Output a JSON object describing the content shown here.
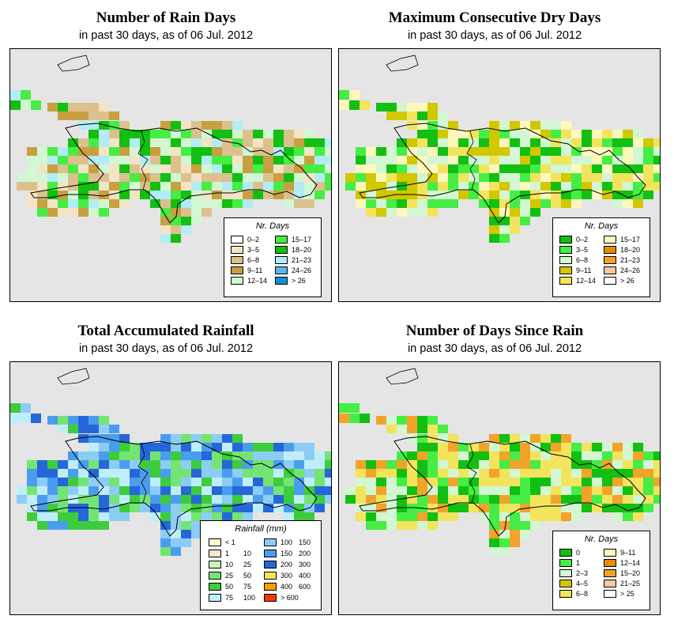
{
  "panels": [
    {
      "id": "rain_days",
      "title": "Number of Rain Days",
      "subtitle": "in past 30 days, as of  06 Jul. 2012",
      "legend": {
        "title": "Nr. Days",
        "items": [
          {
            "label": "0–2",
            "color": "#ffffff"
          },
          {
            "label": "3–5",
            "color": "#f3e4c6"
          },
          {
            "label": "6–8",
            "color": "#dcc18e"
          },
          {
            "label": "9–11",
            "color": "#c8a041"
          },
          {
            "label": "12–14",
            "color": "#d2f7d2"
          },
          {
            "label": "15–17",
            "color": "#45ed45"
          },
          {
            "label": "18–20",
            "color": "#12bf12"
          },
          {
            "label": "21–23",
            "color": "#b3ecf4"
          },
          {
            "label": "24–26",
            "color": "#59b7ec"
          },
          {
            "label": "> 26",
            "color": "#138fd0"
          }
        ]
      }
    },
    {
      "id": "max_dry",
      "title": "Maximum Consecutive Dry Days",
      "subtitle": "in past 30 days, as of  06 Jul. 2012",
      "legend": {
        "title": "Nr. Days",
        "items": [
          {
            "label": "0–2",
            "color": "#12bf12"
          },
          {
            "label": "3–5",
            "color": "#45ed45"
          },
          {
            "label": "6–8",
            "color": "#d2f7d2"
          },
          {
            "label": "9–11",
            "color": "#d2c800"
          },
          {
            "label": "12–14",
            "color": "#f2e45c"
          },
          {
            "label": "15–17",
            "color": "#fff8bd"
          },
          {
            "label": "18–20",
            "color": "#e88b00"
          },
          {
            "label": "21–23",
            "color": "#f2a32a"
          },
          {
            "label": "24–26",
            "color": "#f9c7a0"
          },
          {
            "label": "> 26",
            "color": "#ffffff"
          }
        ]
      }
    },
    {
      "id": "total_rain",
      "title": "Total Accumulated Rainfall",
      "subtitle": "in past 30 days, as of  06 Jul. 2012",
      "legend": {
        "title": "Rainfall (mm)",
        "items": [
          {
            "label": "< 1",
            "label2": "",
            "color": "#fff7d6"
          },
          {
            "label": "1",
            "label2": "10",
            "color": "#f8e8cc"
          },
          {
            "label": "10",
            "label2": "25",
            "color": "#c6f5c1"
          },
          {
            "label": "25",
            "label2": "50",
            "color": "#74e474"
          },
          {
            "label": "50",
            "label2": "75",
            "color": "#3ccc3c"
          },
          {
            "label": "75",
            "label2": "100",
            "color": "#bfeefa"
          },
          {
            "label": "100",
            "label2": "150",
            "color": "#8ccdf5"
          },
          {
            "label": "150",
            "label2": "200",
            "color": "#4a9ded"
          },
          {
            "label": "200",
            "label2": "300",
            "color": "#2567da"
          },
          {
            "label": "300",
            "label2": "400",
            "color": "#f2e45c"
          },
          {
            "label": "400",
            "label2": "600",
            "color": "#f2a100"
          },
          {
            "label": "> 600",
            "label2": "",
            "color": "#f23a00"
          }
        ]
      }
    },
    {
      "id": "days_since",
      "title": "Number of Days Since Rain",
      "subtitle": "in past 30 days, as of  06 Jul. 2012",
      "legend": {
        "title": "Nr. Days",
        "items": [
          {
            "label": "0",
            "color": "#12bf12"
          },
          {
            "label": "1",
            "color": "#45ed45"
          },
          {
            "label": "2–3",
            "color": "#d2f7d2"
          },
          {
            "label": "4–5",
            "color": "#d2c800"
          },
          {
            "label": "6–8",
            "color": "#f2e45c"
          },
          {
            "label": "9–11",
            "color": "#fff8bd"
          },
          {
            "label": "12–14",
            "color": "#e88b00"
          },
          {
            "label": "15–20",
            "color": "#f2a32a"
          },
          {
            "label": "21–25",
            "color": "#f9c7a0"
          },
          {
            "label": "> 25",
            "color": "#ffffff"
          }
        ]
      }
    }
  ]
}
